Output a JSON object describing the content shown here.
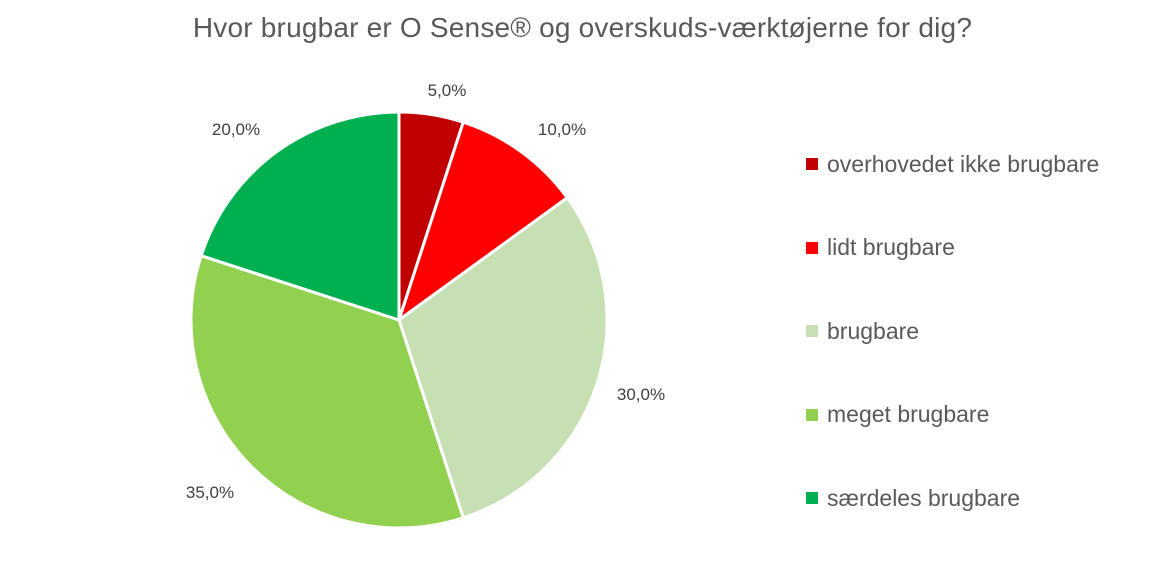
{
  "chart_data": {
    "type": "pie",
    "title": "Hvor brugbar er O Sense® og overskuds-værktøjerne for dig?",
    "categories": [
      "overhovedet ikke brugbare",
      "lidt brugbare",
      "brugbare",
      "meget brugbare",
      "særdeles brugbare"
    ],
    "values": [
      5.0,
      10.0,
      30.0,
      35.0,
      20.0
    ],
    "data_labels": [
      "5,0%",
      "10,0%",
      "30,0%",
      "35,0%",
      "20,0%"
    ],
    "colors": [
      "#c00000",
      "#ff0000",
      "#c6e0b4",
      "#92d050",
      "#00b050"
    ],
    "start_angle": "12 o'clock",
    "direction": "clockwise",
    "legend_position": "right"
  }
}
